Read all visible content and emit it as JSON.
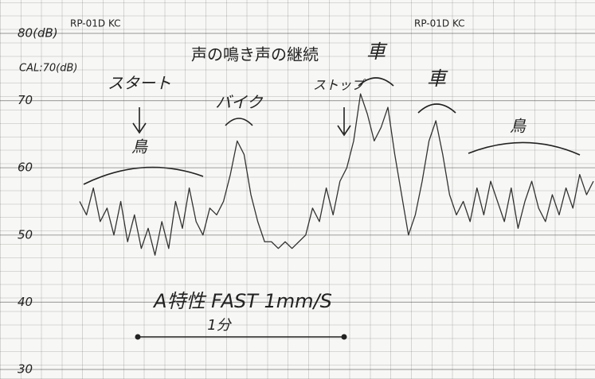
{
  "chart_data": {
    "type": "line",
    "title": "声の鳴き声の継続",
    "header_labels": [
      "RP-01D KC",
      "RP-01D KC"
    ],
    "annotations": [
      "CAL:70(dB)",
      "スタート",
      "鳥",
      "バイク",
      "ストップ",
      "車",
      "車",
      "鳥",
      "A特性 FAST 1mm/S",
      "1分"
    ],
    "x": [
      0,
      2,
      4,
      6,
      8,
      10,
      12,
      14,
      16,
      18,
      20,
      22,
      24,
      26,
      28,
      30,
      32,
      34,
      36,
      38,
      40,
      42,
      44,
      46,
      48,
      50,
      52,
      54,
      56,
      58,
      60,
      62,
      64,
      66,
      68,
      70,
      72,
      74,
      76,
      78,
      80,
      82,
      84,
      86,
      88,
      90,
      92,
      94,
      96,
      98,
      100,
      102,
      104,
      106,
      108,
      110,
      112,
      114,
      116,
      118,
      120,
      122,
      124,
      126,
      128,
      130,
      132,
      134,
      136,
      138,
      140,
      142,
      144,
      146,
      148,
      150
    ],
    "series": [
      {
        "color": "#333333",
        "values": [
          55,
          53,
          57,
          52,
          54,
          50,
          55,
          49,
          53,
          48,
          51,
          47,
          52,
          48,
          55,
          51,
          57,
          52,
          50,
          54,
          53,
          55,
          59,
          64,
          62,
          56,
          52,
          49,
          49,
          48,
          49,
          48,
          49,
          50,
          54,
          52,
          57,
          53,
          58,
          60,
          64,
          71,
          68,
          64,
          66,
          69,
          62,
          56,
          50,
          53,
          58,
          64,
          67,
          62,
          56,
          53,
          55,
          52,
          57,
          53,
          58,
          55,
          52,
          57,
          51,
          55,
          58,
          54,
          52,
          56,
          53,
          57,
          54,
          59,
          56,
          58
        ]
      }
    ],
    "xlim": [
      0,
      150
    ],
    "ylim": [
      30,
      80
    ],
    "yticks": [
      30,
      40,
      50,
      60,
      70,
      {
        "value": 80,
        "label": "80(dB)"
      }
    ],
    "grid": true
  }
}
